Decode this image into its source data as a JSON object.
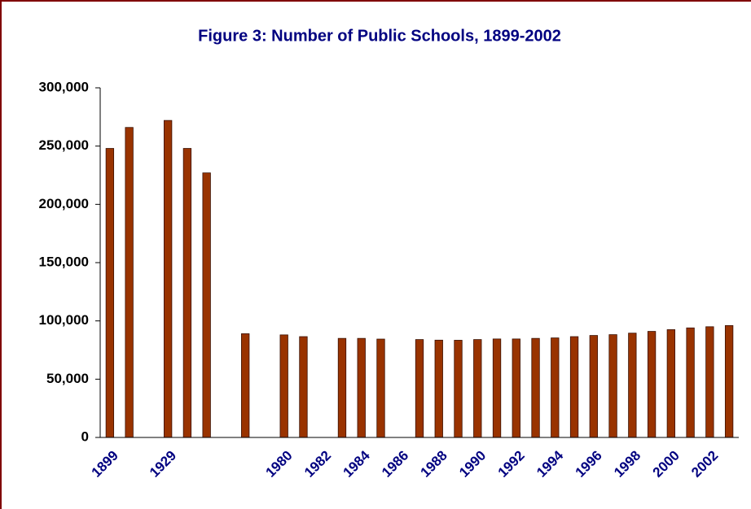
{
  "chart_data": {
    "type": "bar",
    "title": "Figure 3: Number of Public Schools, 1899-2002",
    "categories": [
      "1899",
      null,
      null,
      "1929",
      null,
      null,
      null,
      null,
      null,
      "1980",
      null,
      "1982",
      null,
      "1984",
      null,
      "1986",
      null,
      "1988",
      null,
      "1990",
      null,
      "1992",
      null,
      "1994",
      null,
      "1996",
      null,
      "1998",
      null,
      "2000",
      null,
      "2002",
      null
    ],
    "values": [
      248000,
      266000,
      null,
      272000,
      248000,
      227000,
      null,
      89000,
      null,
      88000,
      86500,
      null,
      85000,
      85000,
      84400,
      null,
      84000,
      83500,
      83400,
      84000,
      84500,
      84500,
      85000,
      85400,
      86500,
      87500,
      88200,
      89500,
      91000,
      92500,
      94000,
      95000,
      96000
    ],
    "color": "#993300",
    "ylim": [
      0,
      300000
    ],
    "yticks": [
      0,
      {
        "value": 50000,
        "label": "50,000"
      },
      {
        "value": 100000,
        "label": "100,000"
      },
      {
        "value": 150000,
        "label": "150,000"
      },
      {
        "value": 200000,
        "label": "200,000"
      },
      {
        "value": 250000,
        "label": "250,000"
      },
      {
        "value": 300000,
        "label": "300,000"
      }
    ],
    "grid": false
  }
}
